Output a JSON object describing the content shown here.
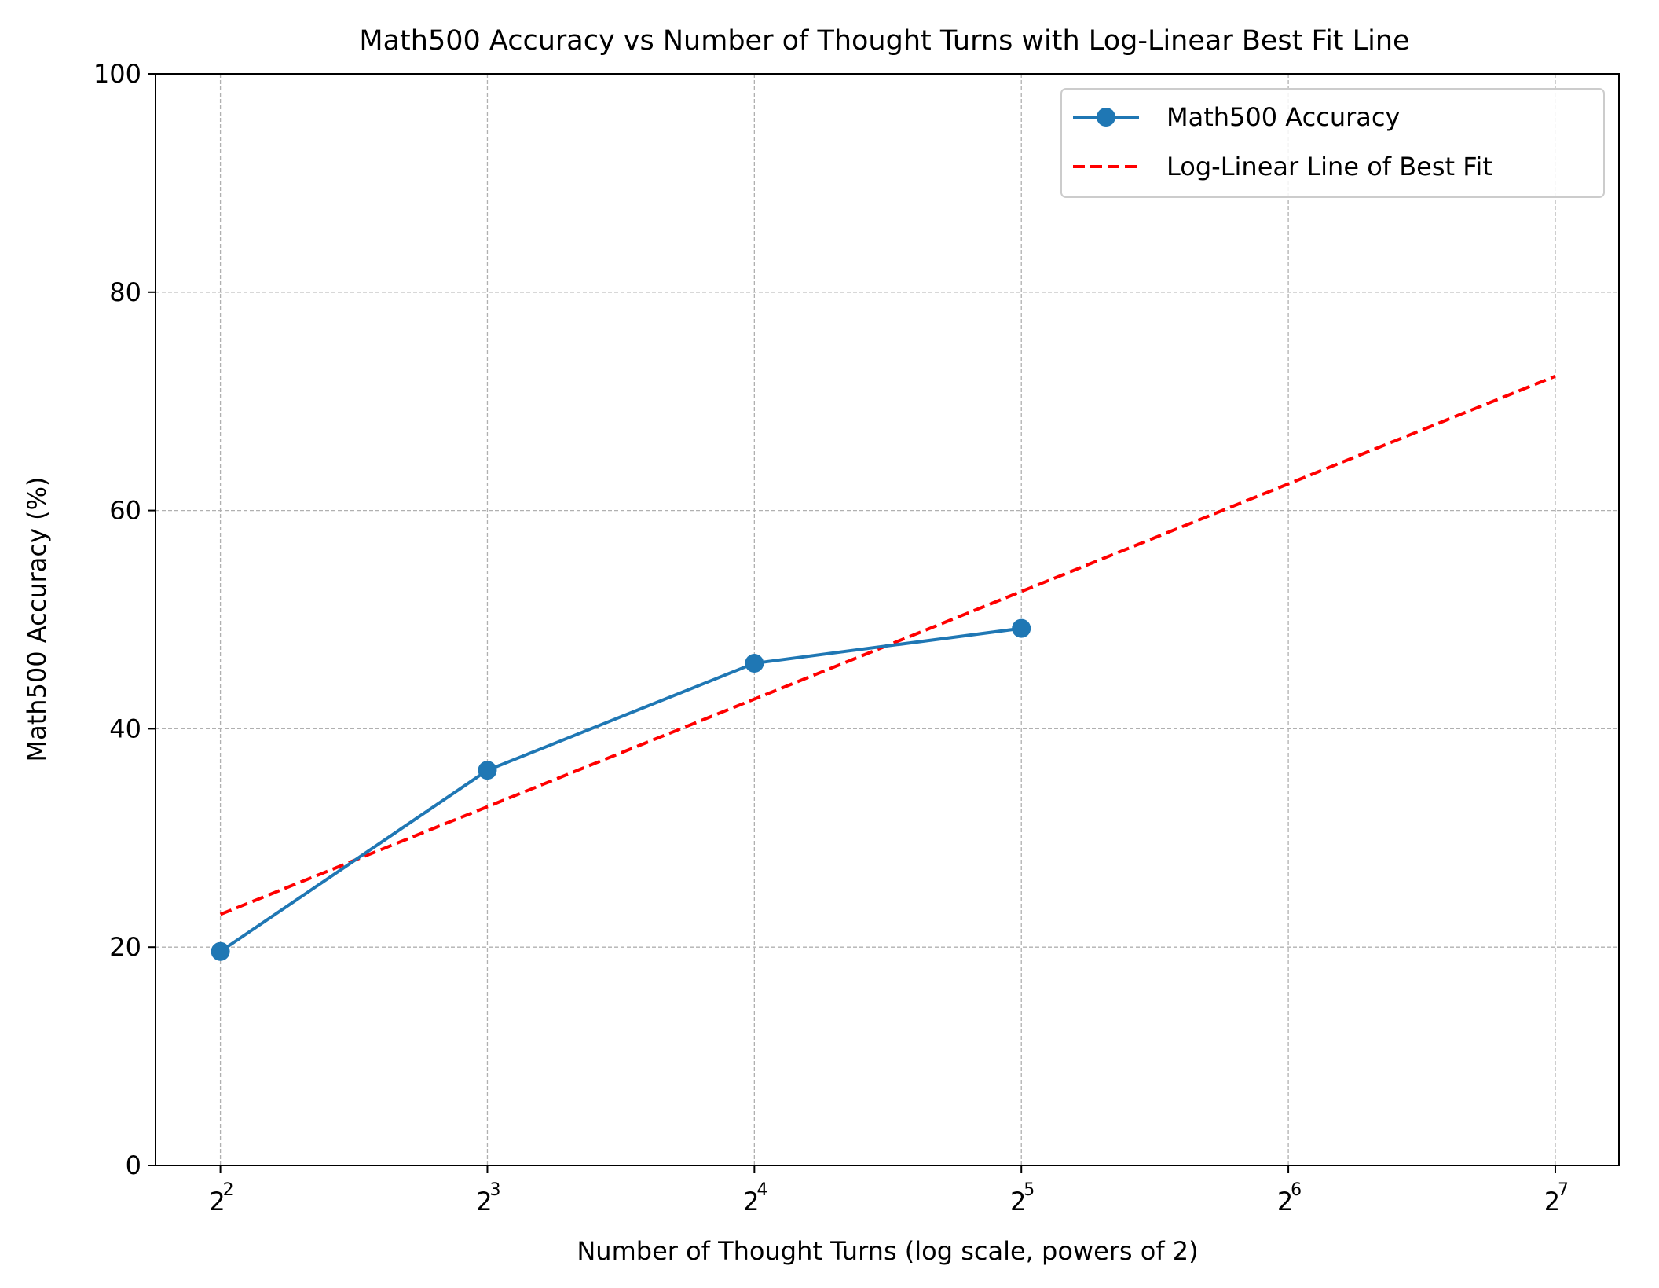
{
  "chart_data": {
    "type": "line",
    "title": "Math500 Accuracy vs Number of Thought Turns with Log-Linear Best Fit Line",
    "xlabel": "Number of Thought Turns (log scale, powers of 2)",
    "ylabel": "Math500 Accuracy (%)",
    "x_scale": "log2",
    "xlim": [
      3.38,
      151.0
    ],
    "ylim": [
      0,
      100
    ],
    "x_ticks": [
      {
        "value": 4,
        "base": "2",
        "exp": "2"
      },
      {
        "value": 8,
        "base": "2",
        "exp": "3"
      },
      {
        "value": 16,
        "base": "2",
        "exp": "4"
      },
      {
        "value": 32,
        "base": "2",
        "exp": "5"
      },
      {
        "value": 64,
        "base": "2",
        "exp": "6"
      },
      {
        "value": 128,
        "base": "2",
        "exp": "7"
      }
    ],
    "y_ticks": [
      {
        "value": 0,
        "label": "0"
      },
      {
        "value": 20,
        "label": "20"
      },
      {
        "value": 40,
        "label": "40"
      },
      {
        "value": 60,
        "label": "60"
      },
      {
        "value": 80,
        "label": "80"
      },
      {
        "value": 100,
        "label": "100"
      }
    ],
    "grid": true,
    "legend_position": "top-right",
    "series": [
      {
        "name": "Math500 Accuracy",
        "style": "solid-with-markers",
        "color": "#1f77b4",
        "x": [
          4,
          8,
          16,
          32
        ],
        "y": [
          19.6,
          36.2,
          46.0,
          49.2
        ]
      },
      {
        "name": "Log-Linear Line of Best Fit",
        "style": "dashed",
        "color": "#ff0000",
        "x": [
          4,
          128
        ],
        "y": [
          23.0,
          72.3
        ]
      }
    ]
  }
}
